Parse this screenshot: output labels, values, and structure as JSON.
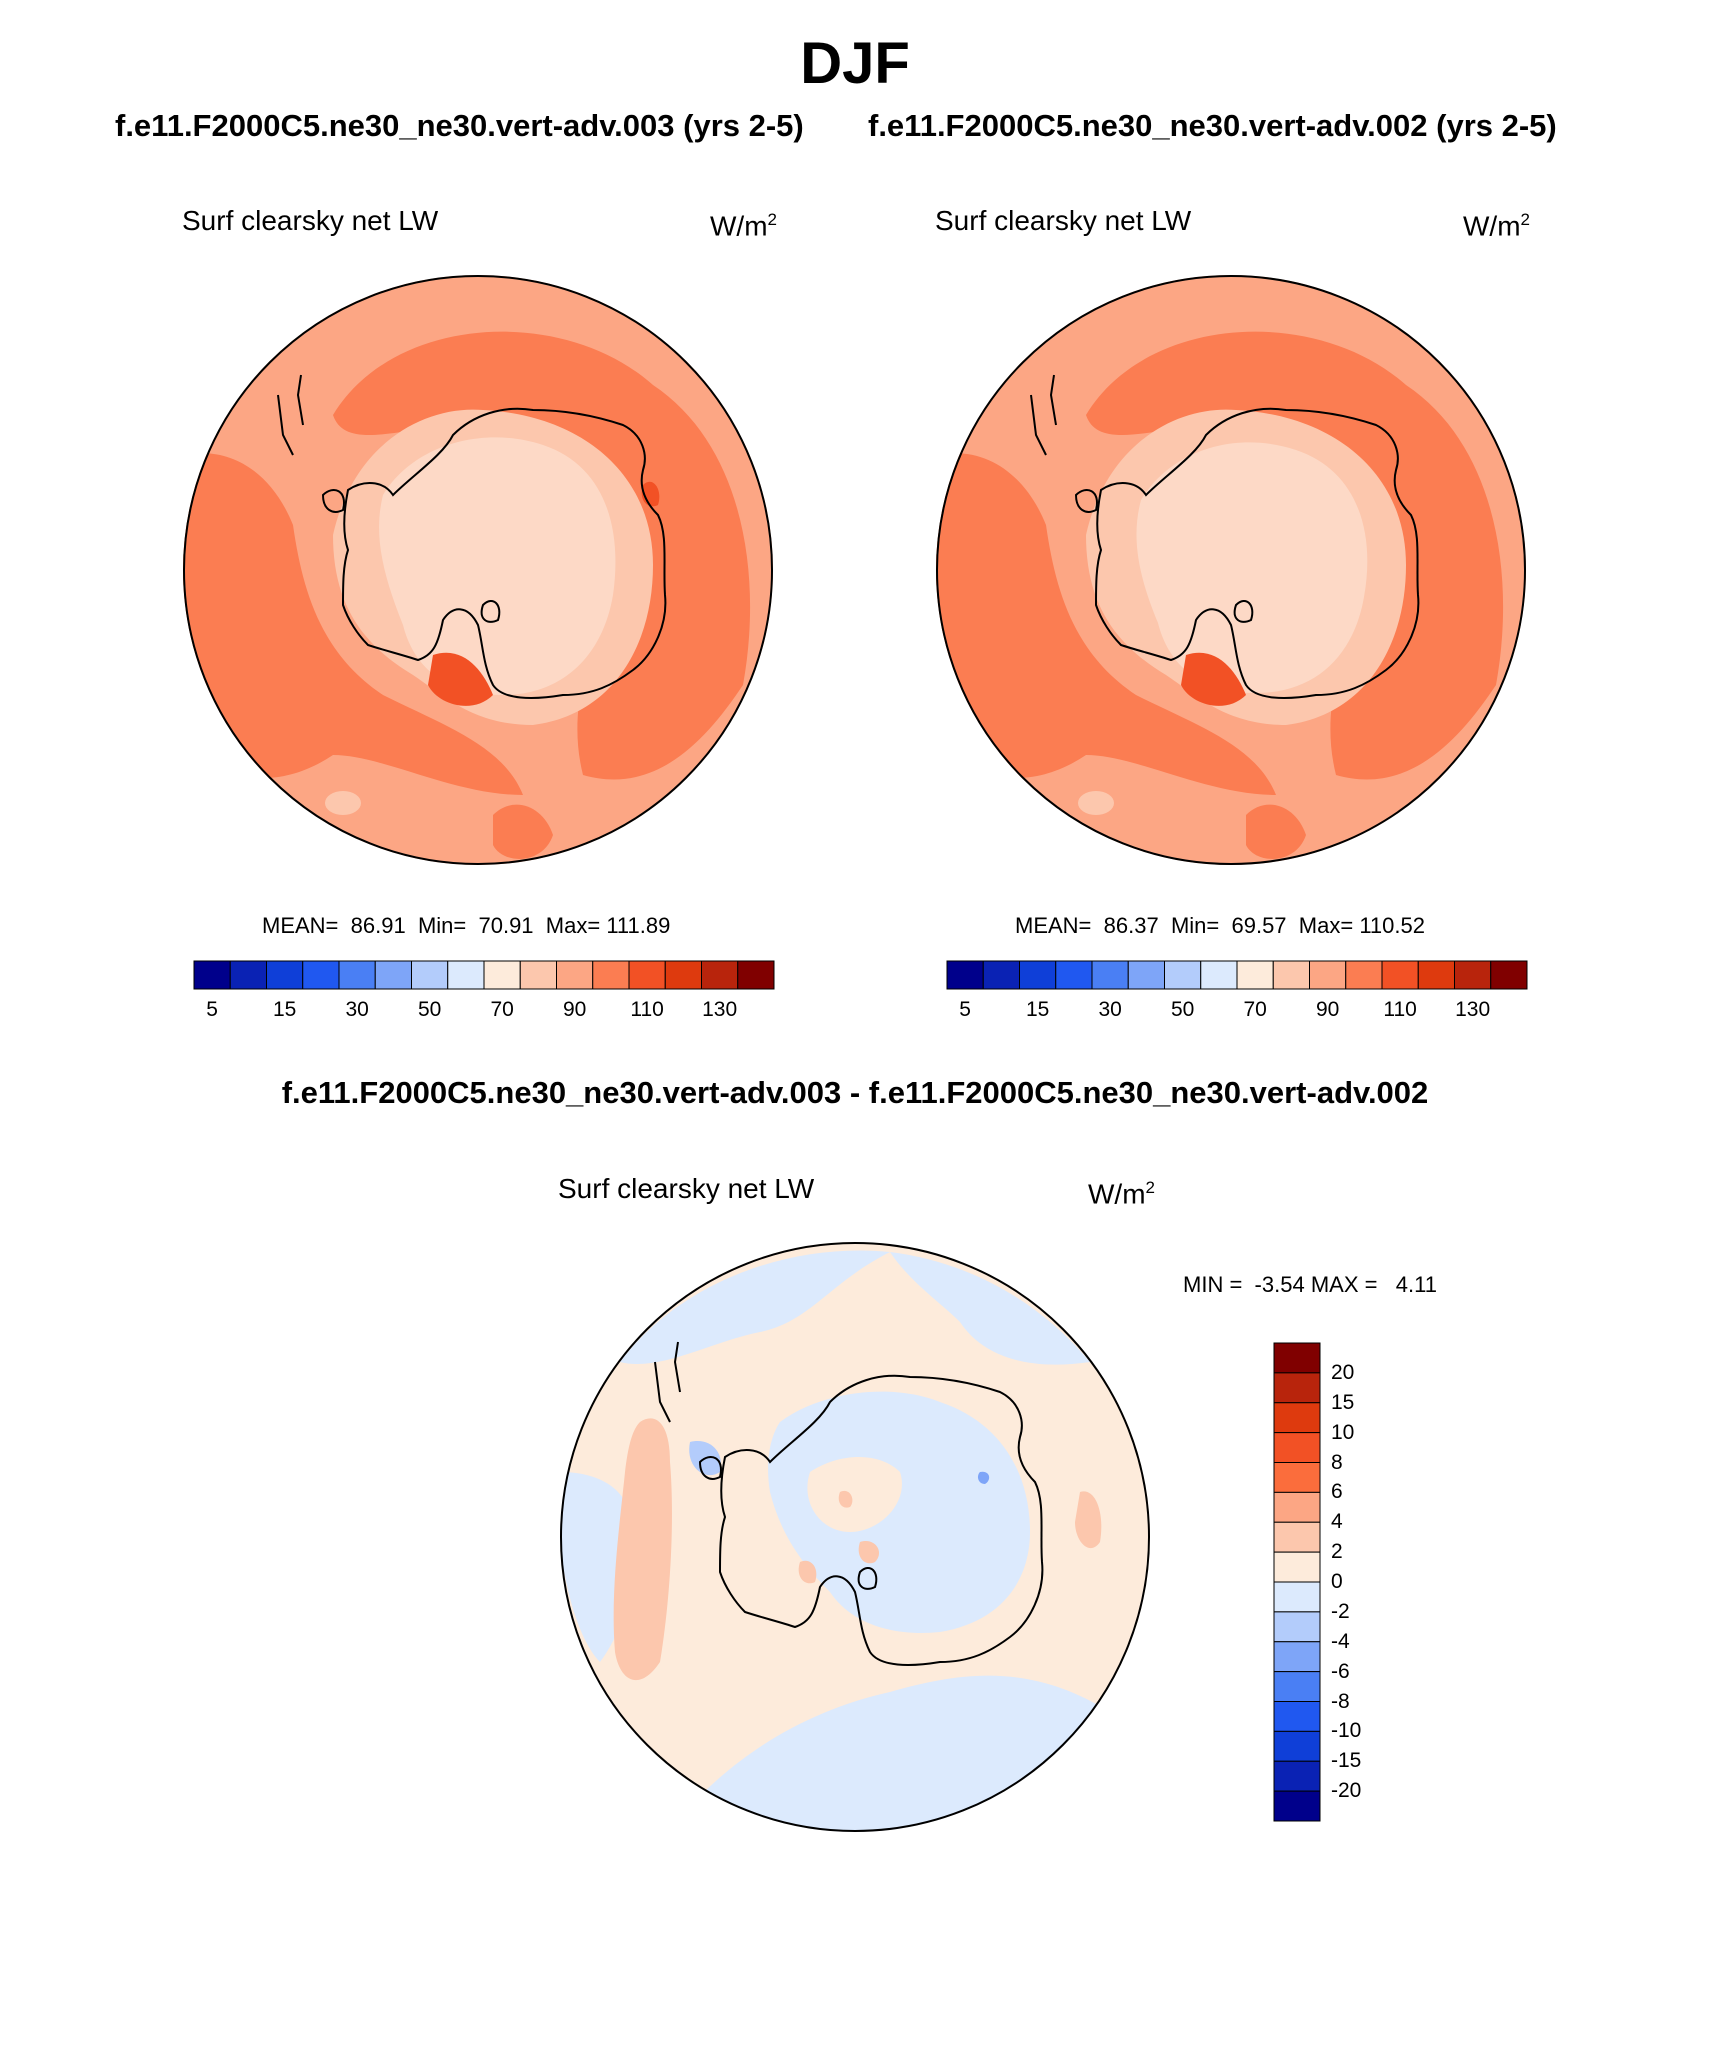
{
  "figure": {
    "season": "DJF",
    "case_left": "f.e11.F2000C5.ne30_ne30.vert-adv.003 (yrs 2-5)",
    "case_right": "f.e11.F2000C5.ne30_ne30.vert-adv.002 (yrs 2-5)",
    "diff_title": "f.e11.F2000C5.ne30_ne30.vert-adv.003 - f.e11.F2000C5.ne30_ne30.vert-adv.002"
  },
  "panels": {
    "left": {
      "variable": "Surf clearsky net LW",
      "unit_base": "W/m",
      "unit_exp": "2",
      "mean_label": "MEAN=",
      "mean": "86.91",
      "min_label": "Min=",
      "min": "70.91",
      "max_label": "Max=",
      "max": "111.89"
    },
    "right": {
      "variable": "Surf clearsky net LW",
      "unit_base": "W/m",
      "unit_exp": "2",
      "mean_label": "MEAN=",
      "mean": "86.37",
      "min_label": "Min=",
      "min": "69.57",
      "max_label": "Max=",
      "max": "110.52"
    },
    "diff": {
      "variable": "Surf clearsky net LW",
      "unit_base": "W/m",
      "unit_exp": "2",
      "min_label": "MIN =",
      "min": "-3.54",
      "max_label": "MAX =",
      "max": "4.11"
    }
  },
  "colorbar_field": {
    "ticks": [
      "5",
      "15",
      "30",
      "50",
      "70",
      "90",
      "110",
      "130"
    ],
    "colors": [
      "#00008b",
      "#0a22b4",
      "#0f3fd8",
      "#2058f0",
      "#4a7ff4",
      "#7ea5f8",
      "#b3ccfb",
      "#dceafd",
      "#fdebdb",
      "#fcc7ad",
      "#fca684",
      "#fb7d52",
      "#f25125",
      "#de3a0e",
      "#b8240c",
      "#800000"
    ]
  },
  "colorbar_diff": {
    "ticks": [
      "20",
      "15",
      "10",
      "8",
      "6",
      "4",
      "2",
      "0",
      "-2",
      "-4",
      "-6",
      "-8",
      "-10",
      "-15",
      "-20"
    ],
    "colors": [
      "#800000",
      "#b8240c",
      "#de3a0e",
      "#f25125",
      "#fb6d3c",
      "#fca684",
      "#fcc7ad",
      "#fdebdb",
      "#dceafd",
      "#b3ccfb",
      "#7ea5f8",
      "#4a7ff4",
      "#2058f0",
      "#0f3fd8",
      "#0a22b4",
      "#00008b"
    ]
  }
}
